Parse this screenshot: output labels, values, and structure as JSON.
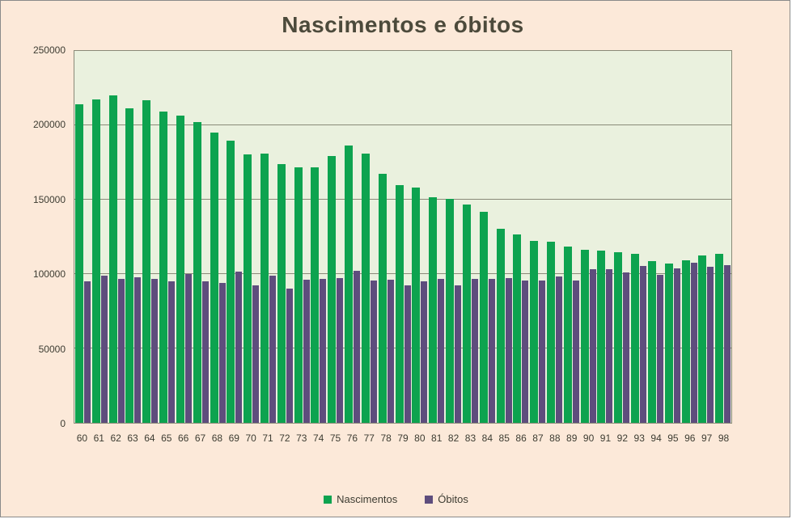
{
  "title": "Nascimentos e óbitos",
  "colors": {
    "births": "#0da34f",
    "deaths": "#5e4d7d",
    "page_background": "#fce9d9",
    "plot_background": "#eaf1de",
    "gridline": "#8a8a78",
    "text": "#3d3c32",
    "title_text": "#4c4a3b"
  },
  "y_axis": {
    "ticks": [
      "250000",
      "200000",
      "150000",
      "100000",
      "50000",
      "0"
    ],
    "max": 250000,
    "min": 0
  },
  "legend": [
    {
      "label": "Nascimentos",
      "color": "#0da34f"
    },
    {
      "label": "Óbitos",
      "color": "#5e4d7d"
    }
  ],
  "chart_data": {
    "type": "bar",
    "title": "Nascimentos e óbitos",
    "categories": [
      "60",
      "61",
      "62",
      "63",
      "64",
      "65",
      "66",
      "67",
      "68",
      "69",
      "70",
      "71",
      "72",
      "73",
      "74",
      "75",
      "76",
      "77",
      "78",
      "79",
      "80",
      "81",
      "82",
      "83",
      "84",
      "85",
      "86",
      "87",
      "88",
      "89",
      "90",
      "91",
      "92",
      "93",
      "94",
      "95",
      "96",
      "97",
      "98"
    ],
    "series": [
      {
        "name": "Nascimentos",
        "color": "#0da34f",
        "values": [
          214000,
          217500,
          220000,
          211500,
          217000,
          209500,
          206500,
          202000,
          195000,
          189500,
          180500,
          181000,
          174000,
          171500,
          171500,
          179500,
          186500,
          181000,
          167500,
          160000,
          158000,
          151500,
          150500,
          147000,
          142000,
          130500,
          126500,
          122500,
          121500,
          118500,
          116500,
          116000,
          114500,
          113500,
          108500,
          107000,
          109500,
          112500,
          113500
        ]
      },
      {
        "name": "Óbitos",
        "color": "#5e4d7d",
        "values": [
          95000,
          99000,
          96500,
          98000,
          97000,
          95000,
          100000,
          95000,
          94000,
          101500,
          92500,
          99000,
          90000,
          96000,
          97000,
          97500,
          102000,
          95500,
          96000,
          92500,
          95000,
          97000,
          92500,
          96500,
          97000,
          97500,
          95500,
          95500,
          98500,
          95500,
          103000,
          103500,
          101000,
          105500,
          99500,
          104000,
          107500,
          105000,
          106000
        ]
      }
    ],
    "ylim": [
      0,
      250000
    ],
    "gridline_interval": 50000,
    "grid": true,
    "legend_position": "bottom",
    "xlabel": "",
    "ylabel": ""
  }
}
